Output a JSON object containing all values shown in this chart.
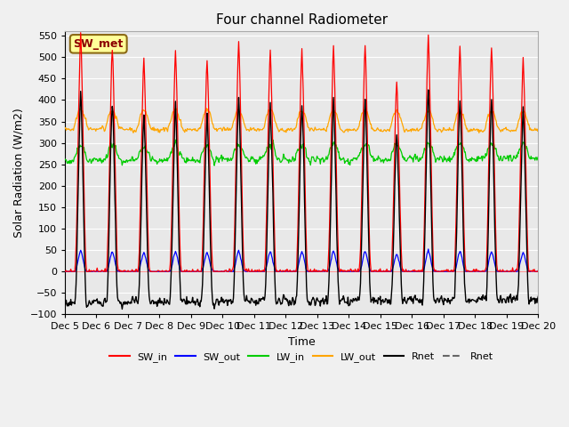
{
  "title": "Four channel Radiometer",
  "xlabel": "Time",
  "ylabel": "Solar Radiation (W/m2)",
  "ylim": [
    -100,
    560
  ],
  "yticks": [
    -100,
    -50,
    0,
    50,
    100,
    150,
    200,
    250,
    300,
    350,
    400,
    450,
    500,
    550
  ],
  "xtick_labels": [
    "Dec 5",
    "Dec 6",
    "Dec 7",
    "Dec 8",
    "Dec 9",
    "Dec 10",
    "Dec 11",
    "Dec 12",
    "Dec 13",
    "Dec 14",
    "Dec 15",
    "Dec 16",
    "Dec 17",
    "Dec 18",
    "Dec 19",
    "Dec 20"
  ],
  "station_label": "SW_met",
  "station_label_color": "#8B0000",
  "station_label_bg": "#FFFF99",
  "colors": {
    "SW_in": "#FF0000",
    "SW_out": "#0000FF",
    "LW_in": "#00CC00",
    "LW_out": "#FFA500",
    "Rnet": "#000000"
  },
  "SW_in_peaks": [
    515,
    487,
    460,
    477,
    460,
    497,
    478,
    480,
    485,
    488,
    410,
    508,
    488,
    488,
    460
  ],
  "legend_entries": [
    "SW_in",
    "SW_out",
    "LW_in",
    "LW_out",
    "Rnet",
    "Rnet"
  ],
  "legend_colors": [
    "#FF0000",
    "#0000FF",
    "#00CC00",
    "#FFA500",
    "#000000",
    "#666666"
  ],
  "background_color": "#E8E8E8",
  "fig_bg": "#F0F0F0"
}
